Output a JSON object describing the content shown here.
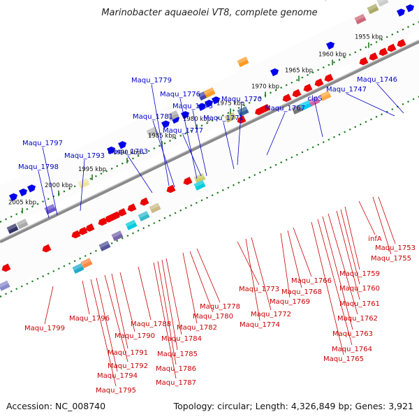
{
  "title": "Marinobacter aquaeolei VT8, complete genome",
  "footer": {
    "accession": "Accession: NC_008740",
    "topology": "Topology: circular; Length: 4,326,849 bp; Genes: 3,921"
  },
  "colors": {
    "forward_gene": "#0000ee",
    "reverse_gene": "#ee0000",
    "top_label": "#0000c8",
    "bottom_label": "#c80000",
    "track_tick": "#1a7a1a",
    "backbone": "#8a8a8a"
  },
  "ticks": [
    "2005 kbp",
    "2000 kbp",
    "1995 kbp",
    "1990 kbp",
    "1985 kbp",
    "1980 kbp",
    "1975 kbp",
    "1970 kbp",
    "1965 kbp",
    "1960 kbp",
    "1955 kbp"
  ],
  "top_labels": [
    "Maqu_1746",
    "Maqu_1747",
    "clpS",
    "Maqu_1767",
    "Maqu_1770",
    "Maqu_1771",
    "Maqu_1775",
    "Maqu_1776",
    "Maqu_1777",
    "Maqu_1779",
    "Maqu_1781",
    "Maqu_1783",
    "Maqu_1793",
    "Maqu_1797",
    "Maqu_1798"
  ],
  "bottom_labels": [
    "Maqu_1753",
    "infA",
    "Maqu_1755",
    "Maqu_1759",
    "Maqu_1760",
    "Maqu_1761",
    "Maqu_1762",
    "Maqu_1763",
    "Maqu_1764",
    "Maqu_1765",
    "Maqu_1766",
    "Maqu_1768",
    "Maqu_1769",
    "Maqu_1772",
    "Maqu_1773",
    "Maqu_1774",
    "Maqu_1778",
    "Maqu_1780",
    "Maqu_1782",
    "Maqu_1784",
    "Maqu_1785",
    "Maqu_1786",
    "Maqu_1787",
    "Maqu_1788",
    "Maqu_1790",
    "Maqu_1791",
    "Maqu_1792",
    "Maqu_1794",
    "Maqu_1795",
    "Maqu_1796",
    "Maqu_1799"
  ]
}
